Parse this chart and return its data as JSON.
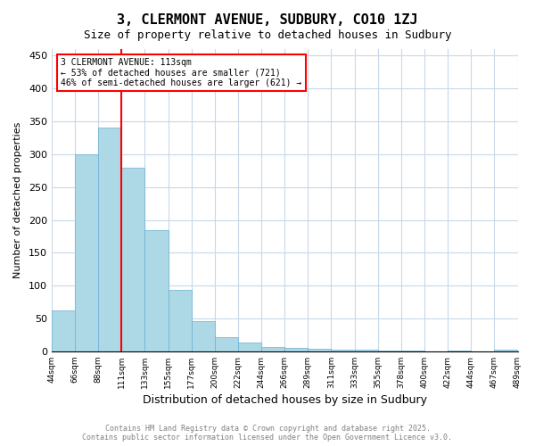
{
  "title": "3, CLERMONT AVENUE, SUDBURY, CO10 1ZJ",
  "subtitle": "Size of property relative to detached houses in Sudbury",
  "xlabel": "Distribution of detached houses by size in Sudbury",
  "ylabel": "Number of detached properties",
  "bar_values": [
    62,
    300,
    340,
    280,
    185,
    93,
    46,
    22,
    13,
    7,
    5,
    4,
    3,
    2,
    1,
    1,
    0,
    1,
    0,
    3
  ],
  "bin_labels": [
    "44sqm",
    "66sqm",
    "88sqm",
    "111sqm",
    "133sqm",
    "155sqm",
    "177sqm",
    "200sqm",
    "222sqm",
    "244sqm",
    "266sqm",
    "289sqm",
    "311sqm",
    "333sqm",
    "355sqm",
    "378sqm",
    "400sqm",
    "422sqm",
    "444sqm",
    "467sqm",
    "489sqm"
  ],
  "bar_color": "#add8e6",
  "bar_edge_color": "#6ab0d4",
  "property_line_x": 3,
  "property_value": "113sqm",
  "annotation_text_line1": "3 CLERMONT AVENUE: 113sqm",
  "annotation_text_line2": "← 53% of detached houses are smaller (721)",
  "annotation_text_line3": "46% of semi-detached houses are larger (621) →",
  "annotation_box_color": "white",
  "annotation_box_edge": "red",
  "property_line_color": "red",
  "ylim": [
    0,
    460
  ],
  "yticks": [
    0,
    50,
    100,
    150,
    200,
    250,
    300,
    350,
    400,
    450
  ],
  "footer_line1": "Contains HM Land Registry data © Crown copyright and database right 2025.",
  "footer_line2": "Contains public sector information licensed under the Open Government Licence v3.0.",
  "background_color": "white",
  "grid_color": "#c8d8e8"
}
